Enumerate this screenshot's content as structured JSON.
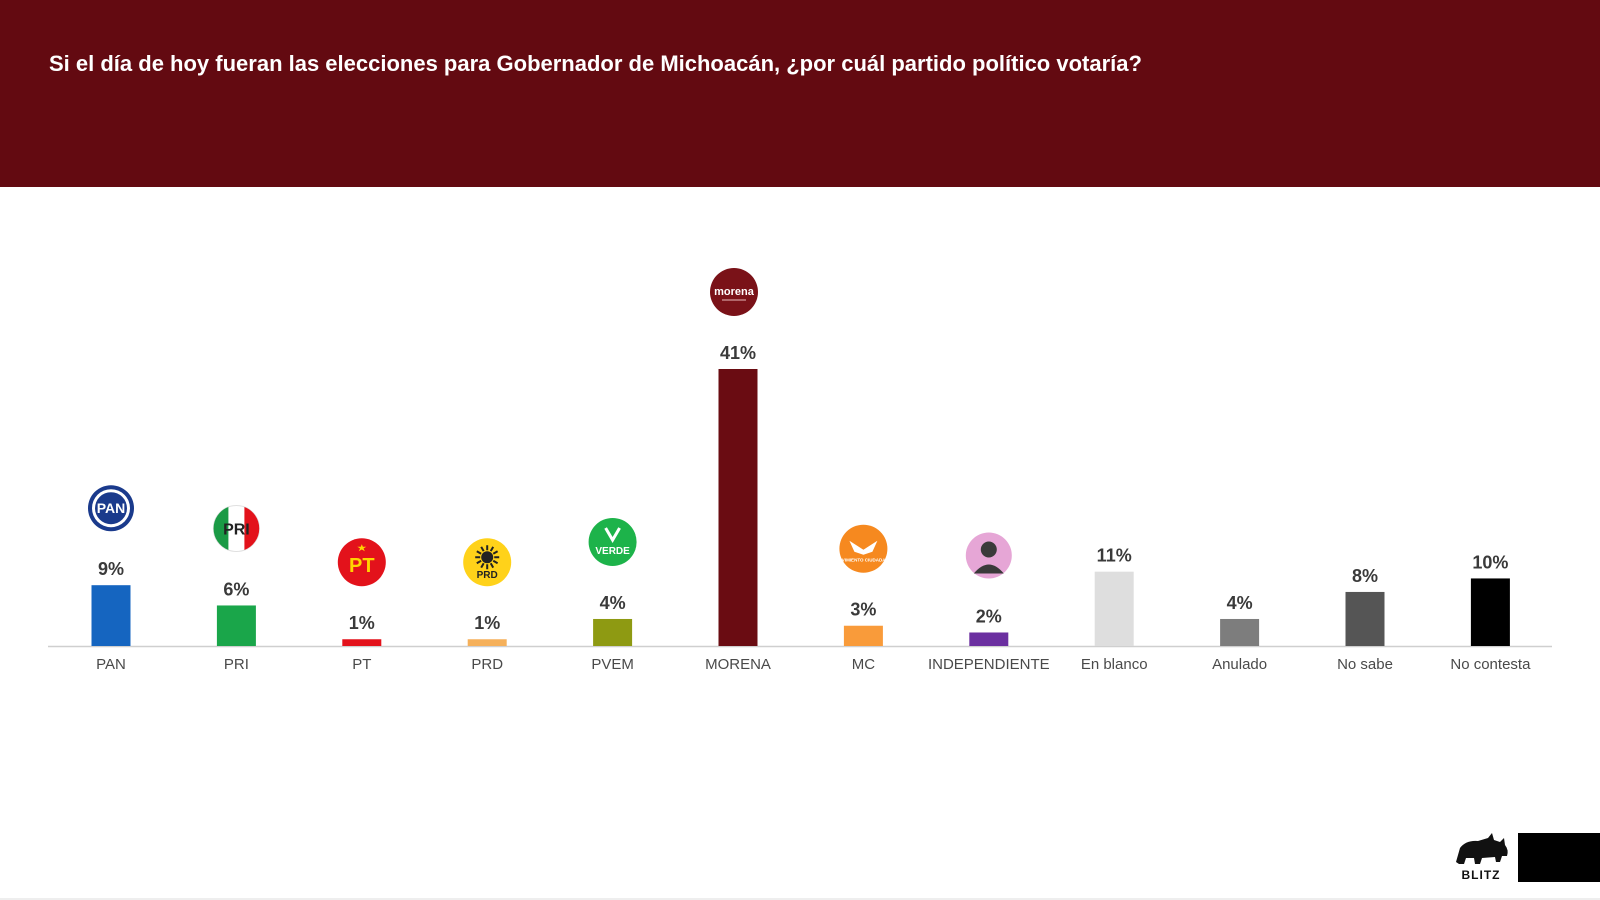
{
  "header": {
    "title": "Si el día de hoy fueran las elecciones para Gobernador de Michoacán, ¿por cuál partido político votaría?",
    "background": "#630a11"
  },
  "brand": {
    "name": "BLITZ"
  },
  "chart_data": {
    "type": "bar",
    "title": "Si el día de hoy fueran las elecciones para Gobernador de Michoacán, ¿por cuál partido político votaría?",
    "xlabel": "",
    "ylabel": "",
    "ylim": [
      0,
      41
    ],
    "grid": false,
    "legend": "none",
    "categories": [
      "PAN",
      "PRI",
      "PT",
      "PRD",
      "PVEM",
      "MORENA",
      "MC",
      "INDEPENDIENTE",
      "En blanco",
      "Anulado",
      "No sabe",
      "No contesta"
    ],
    "values": [
      9,
      6,
      1,
      1,
      4,
      41,
      3,
      2,
      11,
      4,
      8,
      10
    ],
    "value_labels": [
      "9%",
      "6%",
      "1%",
      "1%",
      "4%",
      "41%",
      "3%",
      "2%",
      "11%",
      "4%",
      "8%",
      "10%"
    ],
    "colors": [
      "#1565c0",
      "#1aa64a",
      "#e3121b",
      "#f5b05a",
      "#8e9a12",
      "#6a0c12",
      "#f99b3a",
      "#6b2fa0",
      "#dedede",
      "#7d7d7d",
      "#555555",
      "#000000"
    ],
    "logos": [
      {
        "icon": "pan-logo-icon",
        "text": "PAN"
      },
      {
        "icon": "pri-logo-icon",
        "text": "PRI"
      },
      {
        "icon": "pt-logo-icon",
        "text": "PT"
      },
      {
        "icon": "prd-logo-icon",
        "text": "PRD"
      },
      {
        "icon": "verde-logo-icon",
        "text": "VERDE"
      },
      {
        "icon": "morena-logo-icon",
        "text": "morena"
      },
      {
        "icon": "mc-logo-icon",
        "text": "MOVIMIENTO CIUDADANO"
      },
      {
        "icon": "independiente-person-icon",
        "text": ""
      },
      null,
      null,
      null,
      null
    ]
  }
}
